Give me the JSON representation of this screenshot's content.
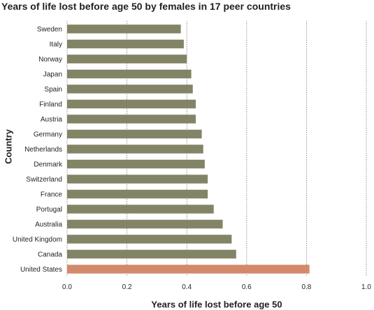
{
  "chart_data": {
    "type": "bar",
    "orientation": "horizontal",
    "title": "Years of life lost before age 50 by females in 17 peer countries",
    "xlabel": "Years of life lost before age 50",
    "ylabel": "Country",
    "xlim": [
      0,
      1.0
    ],
    "xticks": [
      "0.0",
      "0.2",
      "0.4",
      "0.6",
      "0.8",
      "1.0"
    ],
    "grid": "vertical dotted",
    "categories": [
      "Sweden",
      "Italy",
      "Norway",
      "Japan",
      "Spain",
      "Finland",
      "Austria",
      "Germany",
      "Netherlands",
      "Denmark",
      "Switzerland",
      "France",
      "Portugal",
      "Australia",
      "United Kingdom",
      "Canada",
      "United States"
    ],
    "values": [
      0.38,
      0.39,
      0.4,
      0.415,
      0.42,
      0.43,
      0.43,
      0.45,
      0.455,
      0.46,
      0.47,
      0.47,
      0.49,
      0.52,
      0.55,
      0.565,
      0.81
    ],
    "colors": {
      "default": "#838466",
      "highlight": "#d4896b"
    },
    "highlight": "United States"
  }
}
